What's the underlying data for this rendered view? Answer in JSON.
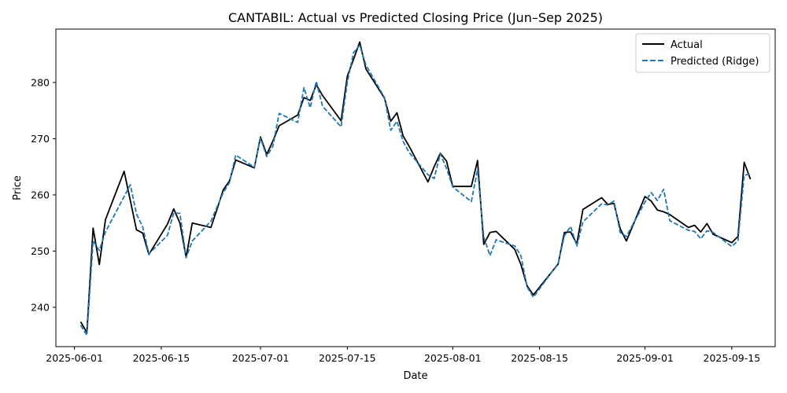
{
  "chart_data": {
    "type": "line",
    "title": "CANTABIL: Actual vs Predicted Closing Price (Jun–Sep 2025)",
    "xlabel": "Date",
    "ylabel": "Price",
    "xlim": [
      "2025-05-29",
      "2025-09-22"
    ],
    "ylim": [
      233,
      289.5
    ],
    "x_ticks": [
      "2025-06-01",
      "2025-06-15",
      "2025-07-01",
      "2025-07-15",
      "2025-08-01",
      "2025-08-15",
      "2025-09-01",
      "2025-09-15"
    ],
    "y_ticks": [
      240,
      250,
      260,
      270,
      280
    ],
    "grid": false,
    "legend": "upper right",
    "colors": {
      "actual": "#000000",
      "predicted": "#1f77b4"
    },
    "series": [
      {
        "name": "Actual",
        "style": "solid",
        "points": [
          [
            "2025-06-02",
            237.4
          ],
          [
            "2025-06-03",
            235.5
          ],
          [
            "2025-06-04",
            254.1
          ],
          [
            "2025-06-05",
            247.6
          ],
          [
            "2025-06-06",
            255.6
          ],
          [
            "2025-06-09",
            264.2
          ],
          [
            "2025-06-10",
            259.0
          ],
          [
            "2025-06-11",
            253.8
          ],
          [
            "2025-06-12",
            253.2
          ],
          [
            "2025-06-13",
            249.4
          ],
          [
            "2025-06-16",
            254.8
          ],
          [
            "2025-06-17",
            257.5
          ],
          [
            "2025-06-18",
            255.0
          ],
          [
            "2025-06-19",
            248.9
          ],
          [
            "2025-06-20",
            255.0
          ],
          [
            "2025-06-23",
            254.2
          ],
          [
            "2025-06-24",
            257.5
          ],
          [
            "2025-06-25",
            260.9
          ],
          [
            "2025-06-26",
            262.5
          ],
          [
            "2025-06-27",
            266.2
          ],
          [
            "2025-06-30",
            264.8
          ],
          [
            "2025-07-01",
            270.3
          ],
          [
            "2025-07-02",
            267.2
          ],
          [
            "2025-07-03",
            269.6
          ],
          [
            "2025-07-04",
            272.3
          ],
          [
            "2025-07-07",
            274.2
          ],
          [
            "2025-07-08",
            277.3
          ],
          [
            "2025-07-09",
            276.8
          ],
          [
            "2025-07-10",
            279.6
          ],
          [
            "2025-07-11",
            277.7
          ],
          [
            "2025-07-14",
            273.2
          ],
          [
            "2025-07-15",
            281.1
          ],
          [
            "2025-07-16",
            284.1
          ],
          [
            "2025-07-17",
            287.2
          ],
          [
            "2025-07-18",
            282.4
          ],
          [
            "2025-07-21",
            277.2
          ],
          [
            "2025-07-22",
            273.1
          ],
          [
            "2025-07-23",
            274.6
          ],
          [
            "2025-07-24",
            270.5
          ],
          [
            "2025-07-25",
            268.6
          ],
          [
            "2025-07-28",
            262.3
          ],
          [
            "2025-07-29",
            265.0
          ],
          [
            "2025-07-30",
            267.4
          ],
          [
            "2025-07-31",
            266.0
          ],
          [
            "2025-08-01",
            261.5
          ],
          [
            "2025-08-04",
            261.5
          ],
          [
            "2025-08-05",
            266.1
          ],
          [
            "2025-08-06",
            251.2
          ],
          [
            "2025-08-07",
            253.3
          ],
          [
            "2025-08-08",
            253.5
          ],
          [
            "2025-08-11",
            250.3
          ],
          [
            "2025-08-12",
            247.6
          ],
          [
            "2025-08-13",
            243.8
          ],
          [
            "2025-08-14",
            242.2
          ],
          [
            "2025-08-18",
            247.7
          ],
          [
            "2025-08-19",
            253.3
          ],
          [
            "2025-08-20",
            253.4
          ],
          [
            "2025-08-21",
            251.3
          ],
          [
            "2025-08-22",
            257.4
          ],
          [
            "2025-08-25",
            259.5
          ],
          [
            "2025-08-26",
            258.3
          ],
          [
            "2025-08-27",
            258.5
          ],
          [
            "2025-08-28",
            254.0
          ],
          [
            "2025-08-29",
            251.8
          ],
          [
            "2025-09-01",
            259.7
          ],
          [
            "2025-09-02",
            258.9
          ],
          [
            "2025-09-03",
            257.3
          ],
          [
            "2025-09-04",
            257.0
          ],
          [
            "2025-09-05",
            256.5
          ],
          [
            "2025-09-08",
            254.2
          ],
          [
            "2025-09-09",
            254.6
          ],
          [
            "2025-09-10",
            253.4
          ],
          [
            "2025-09-11",
            254.9
          ],
          [
            "2025-09-12",
            253.0
          ],
          [
            "2025-09-15",
            251.5
          ],
          [
            "2025-09-16",
            252.6
          ],
          [
            "2025-09-17",
            265.8
          ],
          [
            "2025-09-18",
            262.8
          ]
        ]
      },
      {
        "name": "Predicted (Ridge)",
        "style": "dashed",
        "points": [
          [
            "2025-06-02",
            236.8
          ],
          [
            "2025-06-03",
            235.0
          ],
          [
            "2025-06-04",
            251.8
          ],
          [
            "2025-06-05",
            250.1
          ],
          [
            "2025-06-06",
            253.4
          ],
          [
            "2025-06-09",
            259.7
          ],
          [
            "2025-06-10",
            261.8
          ],
          [
            "2025-06-11",
            256.6
          ],
          [
            "2025-06-12",
            254.3
          ],
          [
            "2025-06-13",
            249.5
          ],
          [
            "2025-06-16",
            252.8
          ],
          [
            "2025-06-17",
            256.8
          ],
          [
            "2025-06-18",
            256.7
          ],
          [
            "2025-06-19",
            248.8
          ],
          [
            "2025-06-20",
            251.8
          ],
          [
            "2025-06-23",
            255.3
          ],
          [
            "2025-06-24",
            257.9
          ],
          [
            "2025-06-25",
            260.4
          ],
          [
            "2025-06-26",
            262.2
          ],
          [
            "2025-06-27",
            267.1
          ],
          [
            "2025-06-30",
            264.9
          ],
          [
            "2025-07-01",
            270.1
          ],
          [
            "2025-07-02",
            266.8
          ],
          [
            "2025-07-03",
            268.7
          ],
          [
            "2025-07-04",
            274.5
          ],
          [
            "2025-07-07",
            272.9
          ],
          [
            "2025-07-08",
            279.1
          ],
          [
            "2025-07-09",
            275.5
          ],
          [
            "2025-07-10",
            280.2
          ],
          [
            "2025-07-11",
            275.8
          ],
          [
            "2025-07-14",
            272.1
          ],
          [
            "2025-07-15",
            280.0
          ],
          [
            "2025-07-16",
            285.3
          ],
          [
            "2025-07-17",
            286.6
          ],
          [
            "2025-07-18",
            283.1
          ],
          [
            "2025-07-21",
            277.3
          ],
          [
            "2025-07-22",
            271.5
          ],
          [
            "2025-07-23",
            273.1
          ],
          [
            "2025-07-24",
            269.5
          ],
          [
            "2025-07-25",
            267.5
          ],
          [
            "2025-07-28",
            263.6
          ],
          [
            "2025-07-29",
            262.9
          ],
          [
            "2025-07-30",
            267.3
          ],
          [
            "2025-07-31",
            264.7
          ],
          [
            "2025-08-01",
            261.4
          ],
          [
            "2025-08-04",
            258.8
          ],
          [
            "2025-08-05",
            264.5
          ],
          [
            "2025-08-06",
            252.5
          ],
          [
            "2025-08-07",
            249.2
          ],
          [
            "2025-08-08",
            252.0
          ],
          [
            "2025-08-11",
            250.9
          ],
          [
            "2025-08-12",
            249.2
          ],
          [
            "2025-08-13",
            243.6
          ],
          [
            "2025-08-14",
            241.8
          ],
          [
            "2025-08-18",
            247.8
          ],
          [
            "2025-08-19",
            252.7
          ],
          [
            "2025-08-20",
            254.4
          ],
          [
            "2025-08-21",
            250.9
          ],
          [
            "2025-08-22",
            255.2
          ],
          [
            "2025-08-25",
            258.4
          ],
          [
            "2025-08-26",
            258.2
          ],
          [
            "2025-08-27",
            258.9
          ],
          [
            "2025-08-28",
            253.3
          ],
          [
            "2025-08-29",
            252.6
          ],
          [
            "2025-09-01",
            258.7
          ],
          [
            "2025-09-02",
            260.4
          ],
          [
            "2025-09-03",
            259.0
          ],
          [
            "2025-09-04",
            261.0
          ],
          [
            "2025-09-05",
            255.4
          ],
          [
            "2025-09-08",
            253.7
          ],
          [
            "2025-09-09",
            253.5
          ],
          [
            "2025-09-10",
            252.2
          ],
          [
            "2025-09-11",
            253.6
          ],
          [
            "2025-09-12",
            253.3
          ],
          [
            "2025-09-15",
            250.8
          ],
          [
            "2025-09-16",
            251.9
          ],
          [
            "2025-09-17",
            263.5
          ],
          [
            "2025-09-18",
            263.7
          ]
        ]
      }
    ]
  }
}
